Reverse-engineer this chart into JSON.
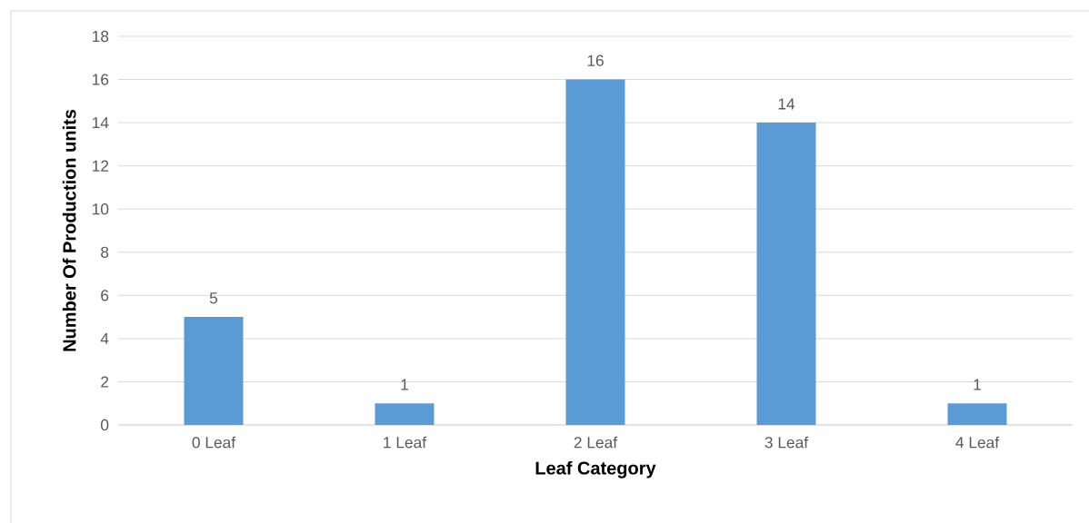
{
  "chart_data": {
    "type": "bar",
    "xlabel": "Leaf Category",
    "ylabel": "Number Of Production units",
    "categories": [
      "0 Leaf",
      "1 Leaf",
      "2 Leaf",
      "3 Leaf",
      "4 Leaf"
    ],
    "values": [
      5,
      1,
      16,
      14,
      1
    ],
    "color": "#5b9bd5",
    "ylim": [
      0,
      18
    ],
    "yticks": [
      0,
      2,
      4,
      6,
      8,
      10,
      12,
      14,
      16,
      18
    ],
    "grid": "y",
    "data_labels": true
  }
}
